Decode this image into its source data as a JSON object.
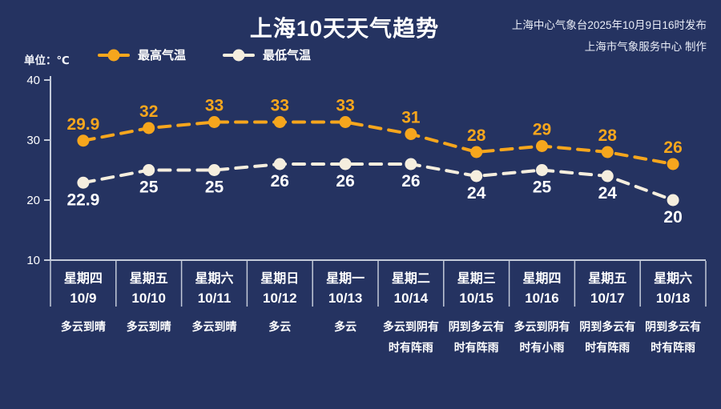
{
  "header": {
    "title": "上海10天天气趋势",
    "publisher_line1": "上海中心气象台2025年10月9日16时发布",
    "publisher_line2": "上海市气象服务中心 制作",
    "unit_label": "单位：℃"
  },
  "legend": [
    {
      "label": "最高气温",
      "color": "#f6a61d"
    },
    {
      "label": "最低气温",
      "color": "#f5eede"
    }
  ],
  "chart_data": {
    "type": "line",
    "title": "上海10天天气趋势",
    "ylabel": "单位：℃",
    "ylim": [
      10,
      40
    ],
    "yticks": [
      40,
      30,
      20,
      10
    ],
    "grid": false,
    "legend_position": "top",
    "categories": [
      {
        "day": "星期四",
        "date": "10/9",
        "weather": "多云到晴"
      },
      {
        "day": "星期五",
        "date": "10/10",
        "weather": "多云到晴"
      },
      {
        "day": "星期六",
        "date": "10/11",
        "weather": "多云到晴"
      },
      {
        "day": "星期日",
        "date": "10/12",
        "weather": "多云"
      },
      {
        "day": "星期一",
        "date": "10/13",
        "weather": "多云"
      },
      {
        "day": "星期二",
        "date": "10/14",
        "weather": "多云到阴有时有阵雨"
      },
      {
        "day": "星期三",
        "date": "10/15",
        "weather": "阴到多云有时有阵雨"
      },
      {
        "day": "星期四",
        "date": "10/16",
        "weather": "多云到阴有时有小雨"
      },
      {
        "day": "星期五",
        "date": "10/17",
        "weather": "阴到多云有时有阵雨"
      },
      {
        "day": "星期六",
        "date": "10/18",
        "weather": "阴到多云有时有阵雨"
      }
    ],
    "series": [
      {
        "name": "最高气温",
        "color": "#f6a61d",
        "label_color": "#f6a61d",
        "label_position": "above",
        "values": [
          29.9,
          32,
          33,
          33,
          33,
          31,
          28,
          29,
          28,
          26
        ]
      },
      {
        "name": "最低气温",
        "color": "#f5eede",
        "label_color": "#ffffff",
        "label_position": "below",
        "values": [
          22.9,
          25,
          25,
          26,
          26,
          26,
          24,
          25,
          24,
          20
        ]
      }
    ]
  },
  "colors": {
    "background": "#253361",
    "axis": "#c3cad9",
    "tick_text": "#ffffff"
  }
}
